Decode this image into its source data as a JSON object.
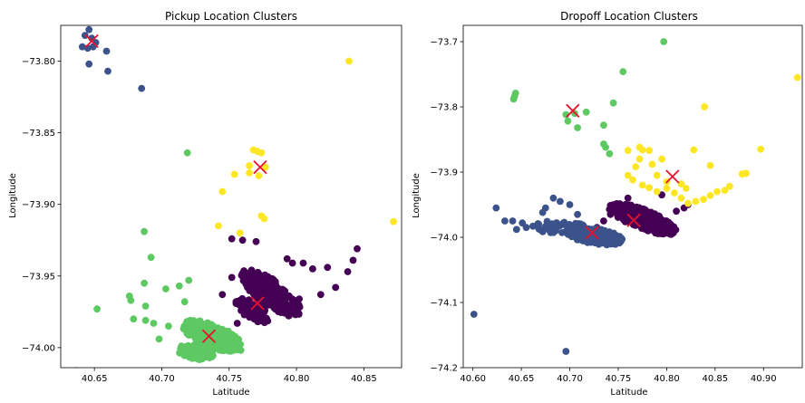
{
  "colors": {
    "cluster_purple": "#440154",
    "cluster_blue": "#3b528b",
    "cluster_green": "#5ec962",
    "cluster_yellow": "#fde725",
    "centroid": "#e8112d"
  },
  "chart_data": [
    {
      "type": "scatter",
      "title": "Pickup Location Clusters",
      "xlabel": "Latitude",
      "ylabel": "Longitude",
      "xlim": [
        40.625,
        40.878
      ],
      "ylim": [
        -74.014,
        -73.775
      ],
      "xticks": [
        40.65,
        40.7,
        40.75,
        40.8,
        40.85
      ],
      "xtick_labels": [
        "40.65",
        "40.70",
        "40.75",
        "40.80",
        "40.85"
      ],
      "yticks": [
        -73.8,
        -73.85,
        -73.9,
        -73.95,
        -74.0
      ],
      "ytick_labels": [
        "−73.80",
        "−73.85",
        "−73.90",
        "−73.95",
        "−74.00"
      ],
      "grid": false,
      "series": [
        {
          "cluster": 0,
          "color": "#440154",
          "blobs": [
            {
              "cx": 40.781,
              "cy": -73.962,
              "rx": 0.026,
              "ry": 0.009,
              "angle_deg": -34,
              "n": 260,
              "seed": 11
            },
            {
              "cx": 40.767,
              "cy": -73.974,
              "rx": 0.014,
              "ry": 0.006,
              "angle_deg": -30,
              "n": 70,
              "seed": 12
            }
          ],
          "points": [
            [
              40.76,
              -73.925
            ],
            [
              40.77,
              -73.926
            ],
            [
              40.752,
              -73.924
            ],
            [
              40.793,
              -73.938
            ],
            [
              40.797,
              -73.941
            ],
            [
              40.805,
              -73.941
            ],
            [
              40.812,
              -73.945
            ],
            [
              40.823,
              -73.944
            ],
            [
              40.838,
              -73.947
            ],
            [
              40.842,
              -73.939
            ],
            [
              40.845,
              -73.931
            ],
            [
              40.752,
              -73.951
            ],
            [
              40.745,
              -73.963
            ],
            [
              40.756,
              -73.983
            ],
            [
              40.802,
              -73.966
            ],
            [
              40.818,
              -73.963
            ],
            [
              40.829,
              -73.958
            ]
          ]
        },
        {
          "cluster": 1,
          "color": "#3b528b",
          "points": [
            [
              40.643,
              -73.782
            ],
            [
              40.646,
              -73.778
            ],
            [
              40.648,
              -73.784
            ],
            [
              40.651,
              -73.787
            ],
            [
              40.641,
              -73.79
            ],
            [
              40.645,
              -73.791
            ],
            [
              40.649,
              -73.79
            ],
            [
              40.659,
              -73.793
            ],
            [
              40.646,
              -73.802
            ],
            [
              40.66,
              -73.807
            ],
            [
              40.685,
              -73.819
            ]
          ]
        },
        {
          "cluster": 2,
          "color": "#5ec962",
          "blobs": [
            {
              "cx": 40.738,
              "cy": -73.992,
              "rx": 0.024,
              "ry": 0.008,
              "angle_deg": -20,
              "n": 260,
              "seed": 21
            },
            {
              "cx": 40.725,
              "cy": -74.003,
              "rx": 0.014,
              "ry": 0.005,
              "angle_deg": -10,
              "n": 80,
              "seed": 22
            }
          ],
          "points": [
            [
              40.687,
              -73.919
            ],
            [
              40.692,
              -73.937
            ],
            [
              40.687,
              -73.955
            ],
            [
              40.688,
              -73.971
            ],
            [
              40.676,
              -73.964
            ],
            [
              40.677,
              -73.967
            ],
            [
              40.679,
              -73.98
            ],
            [
              40.688,
              -73.981
            ],
            [
              40.694,
              -73.983
            ],
            [
              40.652,
              -73.973
            ],
            [
              40.703,
              -73.959
            ],
            [
              40.713,
              -73.957
            ],
            [
              40.72,
              -73.953
            ],
            [
              40.717,
              -73.968
            ],
            [
              40.719,
              -73.864
            ],
            [
              40.636,
              -74.016
            ],
            [
              40.698,
              -73.994
            ],
            [
              40.705,
              -73.985
            ]
          ]
        },
        {
          "cluster": 3,
          "color": "#fde725",
          "points": [
            [
              40.768,
              -73.862
            ],
            [
              40.771,
              -73.863
            ],
            [
              40.774,
              -73.864
            ],
            [
              40.765,
              -73.873
            ],
            [
              40.777,
              -73.874
            ],
            [
              40.765,
              -73.878
            ],
            [
              40.772,
              -73.88
            ],
            [
              40.754,
              -73.879
            ],
            [
              40.745,
              -73.891
            ],
            [
              40.774,
              -73.908
            ],
            [
              40.776,
              -73.91
            ],
            [
              40.742,
              -73.915
            ],
            [
              40.758,
              -73.92
            ],
            [
              40.839,
              -73.8
            ],
            [
              40.872,
              -73.912
            ]
          ]
        }
      ],
      "centroids": [
        [
          40.771,
          -73.969
        ],
        [
          40.648,
          -73.786
        ],
        [
          40.735,
          -73.992
        ],
        [
          40.773,
          -73.874
        ]
      ]
    },
    {
      "type": "scatter",
      "title": "Dropoff Location Clusters",
      "xlabel": "Latitude",
      "ylabel": "Longitude",
      "xlim": [
        40.59,
        40.94
      ],
      "ylim": [
        -74.2,
        -73.675
      ],
      "xticks": [
        40.6,
        40.65,
        40.7,
        40.75,
        40.8,
        40.85,
        40.9
      ],
      "xtick_labels": [
        "40.60",
        "40.65",
        "40.70",
        "40.75",
        "40.80",
        "40.85",
        "40.90"
      ],
      "yticks": [
        -73.7,
        -73.8,
        -73.9,
        -74.0,
        -74.1,
        -74.2
      ],
      "ytick_labels": [
        "−73.7",
        "−73.8",
        "−73.9",
        "−74.0",
        "−74.1",
        "−74.2"
      ],
      "grid": false,
      "series": [
        {
          "cluster": 0,
          "color": "#440154",
          "blobs": [
            {
              "cx": 40.775,
              "cy": -73.972,
              "rx": 0.04,
              "ry": 0.014,
              "angle_deg": -32,
              "n": 280,
              "seed": 31
            }
          ],
          "points": [
            [
              40.728,
              -73.985
            ],
            [
              40.735,
              -73.975
            ],
            [
              40.742,
              -73.965
            ],
            [
              40.818,
              -73.955
            ],
            [
              40.822,
              -73.95
            ],
            [
              40.81,
              -73.96
            ],
            [
              40.795,
              -73.935
            ],
            [
              40.76,
              -73.94
            ]
          ]
        },
        {
          "cluster": 1,
          "color": "#3b528b",
          "blobs": [
            {
              "cx": 40.725,
              "cy": -73.998,
              "rx": 0.03,
              "ry": 0.012,
              "angle_deg": -15,
              "n": 200,
              "seed": 41
            },
            {
              "cx": 40.69,
              "cy": -73.985,
              "rx": 0.03,
              "ry": 0.01,
              "angle_deg": -5,
              "n": 60,
              "seed": 42
            }
          ],
          "points": [
            [
              40.624,
              -73.955
            ],
            [
              40.633,
              -73.975
            ],
            [
              40.641,
              -73.975
            ],
            [
              40.651,
              -73.978
            ],
            [
              40.655,
              -73.985
            ],
            [
              40.662,
              -73.983
            ],
            [
              40.668,
              -73.98
            ],
            [
              40.672,
              -73.962
            ],
            [
              40.683,
              -73.94
            ],
            [
              40.69,
              -73.945
            ],
            [
              40.675,
              -73.955
            ],
            [
              40.645,
              -73.988
            ],
            [
              40.601,
              -74.118
            ],
            [
              40.696,
              -74.175
            ],
            [
              40.7,
              -73.95
            ],
            [
              40.708,
              -73.965
            ]
          ]
        },
        {
          "cluster": 2,
          "color": "#5ec962",
          "points": [
            [
              40.644,
              -73.779
            ],
            [
              40.643,
              -73.784
            ],
            [
              40.642,
              -73.788
            ],
            [
              40.696,
              -73.812
            ],
            [
              40.698,
              -73.822
            ],
            [
              40.705,
              -73.81
            ],
            [
              40.708,
              -73.832
            ],
            [
              40.717,
              -73.808
            ],
            [
              40.735,
              -73.828
            ],
            [
              40.735,
              -73.857
            ],
            [
              40.737,
              -73.862
            ],
            [
              40.741,
              -73.872
            ],
            [
              40.745,
              -73.794
            ],
            [
              40.755,
              -73.746
            ],
            [
              40.797,
              -73.7
            ]
          ]
        },
        {
          "cluster": 3,
          "color": "#fde725",
          "points": [
            [
              40.839,
              -73.8
            ],
            [
              40.76,
              -73.867
            ],
            [
              40.772,
              -73.862
            ],
            [
              40.775,
              -73.866
            ],
            [
              40.782,
              -73.867
            ],
            [
              40.772,
              -73.88
            ],
            [
              40.768,
              -73.892
            ],
            [
              40.785,
              -73.888
            ],
            [
              40.795,
              -73.88
            ],
            [
              40.76,
              -73.905
            ],
            [
              40.765,
              -73.912
            ],
            [
              40.775,
              -73.92
            ],
            [
              40.782,
              -73.924
            ],
            [
              40.79,
              -73.93
            ],
            [
              40.8,
              -73.925
            ],
            [
              40.808,
              -73.932
            ],
            [
              40.815,
              -73.94
            ],
            [
              40.822,
              -73.948
            ],
            [
              40.83,
              -73.945
            ],
            [
              40.838,
              -73.942
            ],
            [
              40.845,
              -73.936
            ],
            [
              40.852,
              -73.93
            ],
            [
              40.86,
              -73.928
            ],
            [
              40.865,
              -73.922
            ],
            [
              40.878,
              -73.903
            ],
            [
              40.882,
              -73.902
            ],
            [
              40.828,
              -73.866
            ],
            [
              40.845,
              -73.89
            ],
            [
              40.897,
              -73.865
            ],
            [
              40.935,
              -73.755
            ],
            [
              40.8,
              -73.915
            ],
            [
              40.815,
              -73.918
            ],
            [
              40.79,
              -73.905
            ],
            [
              40.82,
              -73.925
            ]
          ]
        }
      ],
      "centroids": [
        [
          40.766,
          -73.974
        ],
        [
          40.723,
          -73.993
        ],
        [
          40.703,
          -73.806
        ],
        [
          40.806,
          -73.907
        ]
      ]
    }
  ]
}
